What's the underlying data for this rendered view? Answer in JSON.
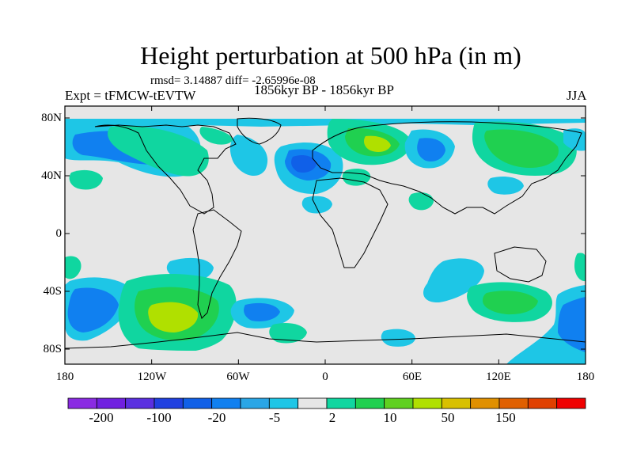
{
  "title": "Height perturbation at 500 hPa (in m)",
  "stats": "rmsd= 3.14887 diff= -2.65996e-08",
  "left_label": "Expt = tFMCW-tEVTW",
  "center_label": "1856kyr BP - 1856kyr BP",
  "right_label": "JJA",
  "map": {
    "lat_ticks": [
      "80N",
      "40N",
      "0",
      "40S",
      "80S"
    ],
    "lon_ticks": [
      "180",
      "120W",
      "60W",
      "0",
      "60E",
      "120E",
      "180"
    ]
  },
  "colorbar": {
    "colors": [
      "#8a2be2",
      "#7020e0",
      "#5a30e0",
      "#2040e0",
      "#1060e8",
      "#1080f0",
      "#2aa6e6",
      "#1ec6e6",
      "#e6e6e6",
      "#10d6a0",
      "#20d050",
      "#60d020",
      "#b0e000",
      "#d8c000",
      "#e09000",
      "#e06000",
      "#e04000",
      "#f00000"
    ],
    "labels": [
      "-200",
      "-100",
      "-20",
      "-5",
      "2",
      "10",
      "50",
      "150"
    ]
  },
  "palette": {
    "ocean_background": "#e6e6e6",
    "coastline": "#000000",
    "zero_band": "#e6e6e6",
    "light_blue": "#1ec6e6",
    "blue": "#1080f0",
    "dark_blue": "#1060e8",
    "teal": "#10d6a0",
    "green": "#20d050",
    "yellow_green": "#b0e000"
  }
}
